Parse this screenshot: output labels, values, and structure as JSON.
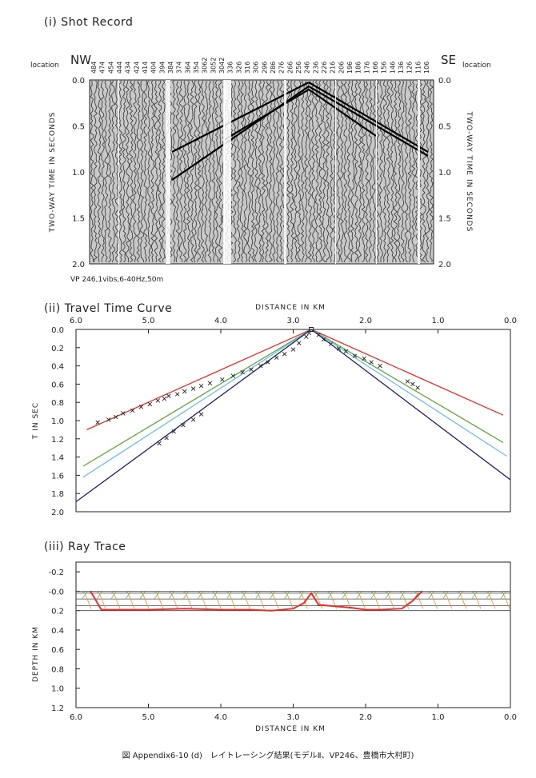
{
  "caption": "図 Appendix6-10 (d)　レイトレーシング結果(モデルⅡ、VP246、豊橋市大村町)",
  "shot_record": {
    "title": "(i)  Shot Record",
    "left_dir": "NW",
    "right_dir": "SE",
    "location_label": "location",
    "vertical_label": "TWO-WAY TIME IN SECONDS",
    "time_ticks": [
      "0.0",
      "0.5",
      "1.0",
      "1.5",
      "2.0"
    ],
    "station_labels": [
      "484",
      "474",
      "454",
      "444",
      "434",
      "424",
      "414",
      "404",
      "394",
      "384",
      "374",
      "364",
      "354",
      "3062",
      "3052",
      "3042",
      "336",
      "326",
      "316",
      "306",
      "296",
      "286",
      "276",
      "266",
      "256",
      "246",
      "236",
      "226",
      "216",
      "206",
      "196",
      "186",
      "176",
      "166",
      "156",
      "146",
      "136",
      "126",
      "116",
      "106"
    ],
    "footer": "VP 246,1vibs,6-40Hz,50m"
  },
  "travel_time": {
    "title": "(ii)  Travel Time Curve",
    "xlabel": "DISTANCE IN KM",
    "ylabel": "T IN SEC",
    "x_ticks": [
      "6.0",
      "5.0",
      "4.0",
      "3.0",
      "2.0",
      "1.0",
      "0.0"
    ],
    "y_ticks": [
      "0.0",
      "0.2",
      "0.4",
      "0.6",
      "0.8",
      "1.0",
      "1.2",
      "1.4",
      "1.6",
      "1.8",
      "2.0"
    ]
  },
  "ray_trace": {
    "title": "(iii)  Ray Trace",
    "xlabel": "DISTANCE IN KM",
    "ylabel": "DEPTH IN KM",
    "x_ticks": [
      "6.0",
      "5.0",
      "4.0",
      "3.0",
      "2.0",
      "1.0",
      "0.0"
    ],
    "y_ticks": [
      "-0.2",
      "-0.0",
      "0.2",
      "0.4",
      "0.6",
      "0.8",
      "1.0",
      "1.2"
    ]
  },
  "colors": {
    "red": "#e8302a",
    "green": "#5fa838",
    "lightblue": "#6cc0e8",
    "navy": "#1e1e6e",
    "orange": "#e8963a",
    "ink": "#222222"
  },
  "chart_data": [
    {
      "type": "line",
      "title": "(ii)  Travel Time Curve",
      "xlabel": "DISTANCE IN KM",
      "ylabel": "T IN SEC",
      "xlim": [
        6.0,
        0.0
      ],
      "ylim": [
        2.0,
        0.0
      ],
      "x_reversed": true,
      "y_inverted": true,
      "grid": false,
      "source_x": 2.75,
      "series": [
        {
          "color": "red",
          "x": [
            5.85,
            2.75,
            0.1
          ],
          "y": [
            1.1,
            0.0,
            0.94
          ]
        },
        {
          "color": "green",
          "x": [
            5.9,
            2.75,
            0.1
          ],
          "y": [
            1.5,
            0.0,
            1.24
          ]
        },
        {
          "color": "lightblue",
          "x": [
            5.9,
            2.75,
            0.05
          ],
          "y": [
            1.62,
            0.0,
            1.39
          ]
        },
        {
          "color": "navy",
          "x": [
            6.0,
            2.75,
            0.0
          ],
          "y": [
            1.89,
            0.0,
            1.65
          ]
        }
      ],
      "observed": {
        "marker": "x",
        "x": [
          5.7,
          5.55,
          5.45,
          5.35,
          5.22,
          5.1,
          4.98,
          4.87,
          4.78,
          4.72,
          4.6,
          4.5,
          4.38,
          4.27,
          4.15,
          3.98,
          3.83,
          3.7,
          3.58,
          3.45,
          3.35,
          3.23,
          3.12,
          3.0,
          2.92,
          2.82,
          2.78,
          2.65,
          2.58,
          2.48,
          2.37,
          2.27,
          2.15,
          2.02,
          1.92,
          1.8,
          1.42,
          1.35,
          1.28,
          4.85,
          4.75,
          4.65,
          4.52,
          4.38,
          4.27
        ],
        "y": [
          1.02,
          0.99,
          0.96,
          0.92,
          0.89,
          0.85,
          0.82,
          0.78,
          0.76,
          0.73,
          0.71,
          0.68,
          0.65,
          0.62,
          0.59,
          0.55,
          0.51,
          0.47,
          0.44,
          0.4,
          0.36,
          0.31,
          0.27,
          0.22,
          0.15,
          0.08,
          0.04,
          0.06,
          0.11,
          0.16,
          0.21,
          0.24,
          0.29,
          0.32,
          0.36,
          0.4,
          0.57,
          0.6,
          0.64,
          1.25,
          1.19,
          1.12,
          1.05,
          0.99,
          0.93
        ]
      }
    },
    {
      "type": "line",
      "title": "(iii)  Ray Trace",
      "xlabel": "DISTANCE IN KM",
      "ylabel": "DEPTH IN KM",
      "xlim": [
        6.0,
        0.0
      ],
      "ylim": [
        1.2,
        -0.3
      ],
      "x_reversed": true,
      "y_inverted": true,
      "layer_boundaries": [
        {
          "name": "surface",
          "x": [
            6.0,
            0.0
          ],
          "y": [
            0.0,
            0.0
          ]
        },
        {
          "name": "layer-1",
          "x": [
            6.0,
            0.0
          ],
          "y": [
            0.02,
            0.02
          ]
        },
        {
          "name": "layer-2",
          "x": [
            6.0,
            0.0
          ],
          "y": [
            0.08,
            0.08
          ]
        },
        {
          "name": "layer-3",
          "x": [
            6.0,
            0.0
          ],
          "y": [
            0.15,
            0.15
          ]
        },
        {
          "name": "layer-4",
          "x": [
            6.0,
            0.0
          ],
          "y": [
            0.2,
            0.2
          ]
        }
      ],
      "reflector_path": {
        "x": [
          5.8,
          5.65,
          5.0,
          4.5,
          4.0,
          3.6,
          3.3,
          3.0,
          2.85,
          2.75,
          2.65,
          2.5,
          2.2,
          2.0,
          1.8,
          1.5,
          1.35,
          1.22
        ],
        "y": [
          0.0,
          0.19,
          0.19,
          0.18,
          0.19,
          0.19,
          0.2,
          0.18,
          0.12,
          0.02,
          0.14,
          0.15,
          0.17,
          0.19,
          0.19,
          0.18,
          0.1,
          0.0
        ]
      },
      "ray_segments": 30
    }
  ]
}
